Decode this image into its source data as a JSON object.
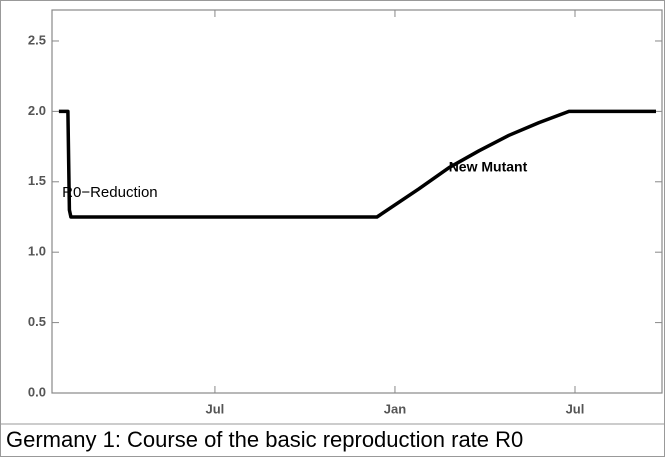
{
  "chart_data": {
    "type": "line",
    "x": [
      0.8,
      1.1,
      1.15,
      1.2,
      11.4,
      12.8,
      13.8,
      14.8,
      15.8,
      16.8,
      17.8,
      20.7
    ],
    "series": [
      {
        "color": "#000000",
        "values": [
          2.0,
          2.0,
          1.3,
          1.25,
          1.25,
          1.45,
          1.6,
          1.72,
          1.83,
          1.92,
          2.0,
          2.0
        ]
      }
    ],
    "xlim": [
      0.57,
      20.9
    ],
    "ylim": [
      0,
      2.72
    ],
    "xticks": [
      {
        "value": 6,
        "label": "Jul"
      },
      {
        "value": 12,
        "label": "Jan"
      },
      {
        "value": 18,
        "label": "Jul"
      }
    ],
    "yticks": [
      {
        "value": 0,
        "label": "0.0"
      },
      0.5,
      {
        "value": 1,
        "label": "1.0"
      },
      1.5,
      {
        "value": 2,
        "label": "2.0"
      },
      2.5
    ],
    "annotations": [
      {
        "text": "New Mutant",
        "x": 15.1,
        "y": 1.6
      },
      {
        "text": "R0−Reduction",
        "x": 2.5,
        "y": 1.42
      }
    ],
    "caption": "Germany 1: Course of the basic reproduction rate R0"
  }
}
